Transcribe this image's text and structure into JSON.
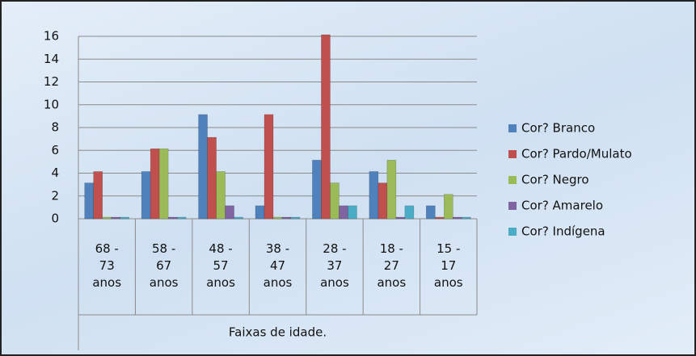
{
  "chart_data": {
    "type": "bar",
    "categories": [
      "68 - 73 anos",
      "58 - 67 anos",
      "48 - 57 anos",
      "38 - 47 anos",
      "28 - 37 anos",
      "18 - 27 anos",
      "15 - 17 anos"
    ],
    "series": [
      {
        "name": "Cor? Branco",
        "color": "#4f81bd",
        "values": [
          3,
          4,
          9,
          1,
          5,
          4,
          1
        ]
      },
      {
        "name": "Cor? Pardo/Mulato",
        "color": "#c0504d",
        "values": [
          4,
          6,
          7,
          9,
          16,
          3,
          0
        ]
      },
      {
        "name": "Cor? Negro",
        "color": "#9bbb59",
        "values": [
          0,
          6,
          4,
          0,
          3,
          5,
          2
        ]
      },
      {
        "name": "Cor? Amarelo",
        "color": "#8064a2",
        "values": [
          0,
          0,
          1,
          0,
          1,
          0,
          0
        ]
      },
      {
        "name": "Cor? Indígena",
        "color": "#4bacc6",
        "values": [
          0,
          0,
          0,
          0,
          1,
          1,
          0
        ]
      }
    ],
    "x_label": "Faixas de idade.",
    "ylim": [
      0,
      16
    ],
    "yticks": [
      0,
      2,
      4,
      6,
      8,
      10,
      12,
      14,
      16
    ],
    "grid": true,
    "legend": "right"
  }
}
